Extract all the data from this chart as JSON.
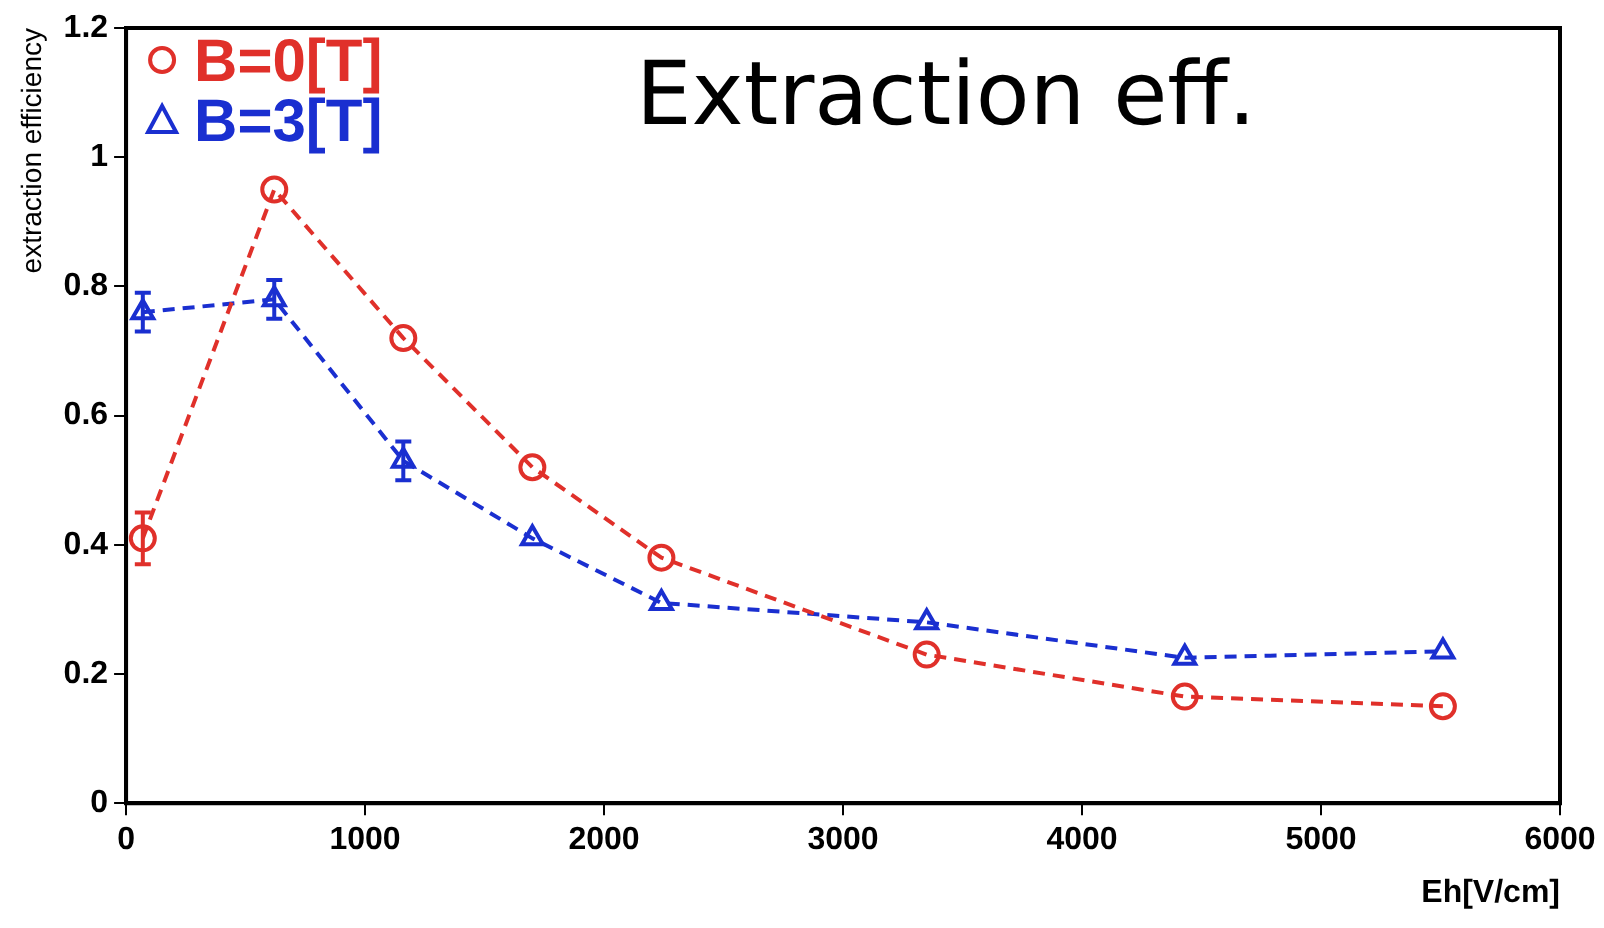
{
  "chart_data": {
    "type": "line",
    "xlabel": "Eh[V/cm]",
    "ylabel": "extraction efficiency",
    "annotations": [
      "Extraction eff."
    ],
    "xlim": [
      0,
      6000
    ],
    "xticks": [
      0,
      1000,
      2000,
      3000,
      4000,
      5000,
      6000
    ],
    "ylim": [
      0,
      1.2
    ],
    "yticks": [
      0,
      0.2,
      0.4,
      0.6,
      0.8,
      1,
      1.2
    ],
    "grid": false,
    "legend": "top left",
    "line_style": "dashed",
    "series": [
      {
        "name": "B=0[T]",
        "color": "#e0302a",
        "marker": "circle",
        "x": [
          70,
          620,
          1160,
          1700,
          2240,
          3350,
          4430,
          5510
        ],
        "values": [
          0.41,
          0.95,
          0.72,
          0.52,
          0.38,
          0.23,
          0.165,
          0.15
        ],
        "errors": [
          0.04,
          null,
          null,
          null,
          null,
          null,
          null,
          null
        ]
      },
      {
        "name": "B=3[T]",
        "color": "#1a2fd0",
        "marker": "triangle",
        "x": [
          70,
          620,
          1160,
          1700,
          2240,
          3350,
          4430,
          5510
        ],
        "values": [
          0.76,
          0.78,
          0.53,
          0.41,
          0.31,
          0.28,
          0.225,
          0.235
        ],
        "errors": [
          0.03,
          0.03,
          0.03,
          null,
          null,
          null,
          null,
          null
        ]
      }
    ]
  }
}
